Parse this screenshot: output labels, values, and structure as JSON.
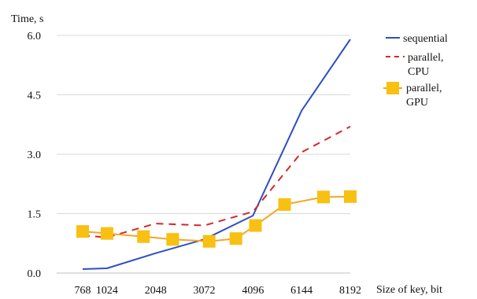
{
  "chart_data": {
    "type": "line",
    "xlabel": "Size of key, bit",
    "ylabel": "Time, s",
    "categories": [
      "768",
      "1024",
      "2048",
      "3072",
      "4096",
      "6144",
      "8192"
    ],
    "x_positions": [
      0,
      0.5,
      1.5,
      2.5,
      3.5,
      4.5,
      5.5
    ],
    "x_range": [
      0,
      5.5
    ],
    "ylim": [
      0,
      6.0
    ],
    "yticks": [
      "0.0",
      "1.5",
      "3.0",
      "4.5",
      "6.0"
    ],
    "ytick_values": [
      0,
      1.5,
      3.0,
      4.5,
      6.0
    ],
    "grid": true,
    "legend_position": "top-right",
    "series": [
      {
        "name": "sequential",
        "style": "solid",
        "color": "#2f4fc4",
        "x": [
          0,
          0.5,
          1.5,
          2.5,
          3.5,
          4.5,
          5.5
        ],
        "values": [
          0.1,
          0.12,
          0.5,
          0.85,
          1.45,
          4.1,
          5.9
        ]
      },
      {
        "name": "parallel, CPU",
        "style": "dashed",
        "color": "#d62728",
        "x": [
          0,
          0.5,
          1.5,
          2.5,
          3.5,
          4.5,
          5.5
        ],
        "values": [
          0.95,
          0.9,
          1.25,
          1.2,
          1.55,
          3.05,
          3.7
        ]
      },
      {
        "name": "parallel, GPU",
        "style": "solid-markers",
        "color": "#f5a623",
        "marker_color": "#f8c012",
        "x": [
          0,
          0.5,
          1.25,
          1.85,
          2.6,
          3.15,
          3.55,
          4.15,
          4.95,
          5.5
        ],
        "values": [
          1.05,
          1.0,
          0.92,
          0.85,
          0.8,
          0.87,
          1.2,
          1.73,
          1.92,
          1.93
        ]
      }
    ],
    "legend": [
      {
        "line1": "sequential",
        "line2": ""
      },
      {
        "line1": "parallel,",
        "line2": "CPU"
      },
      {
        "line1": "parallel,",
        "line2": "GPU"
      }
    ]
  }
}
